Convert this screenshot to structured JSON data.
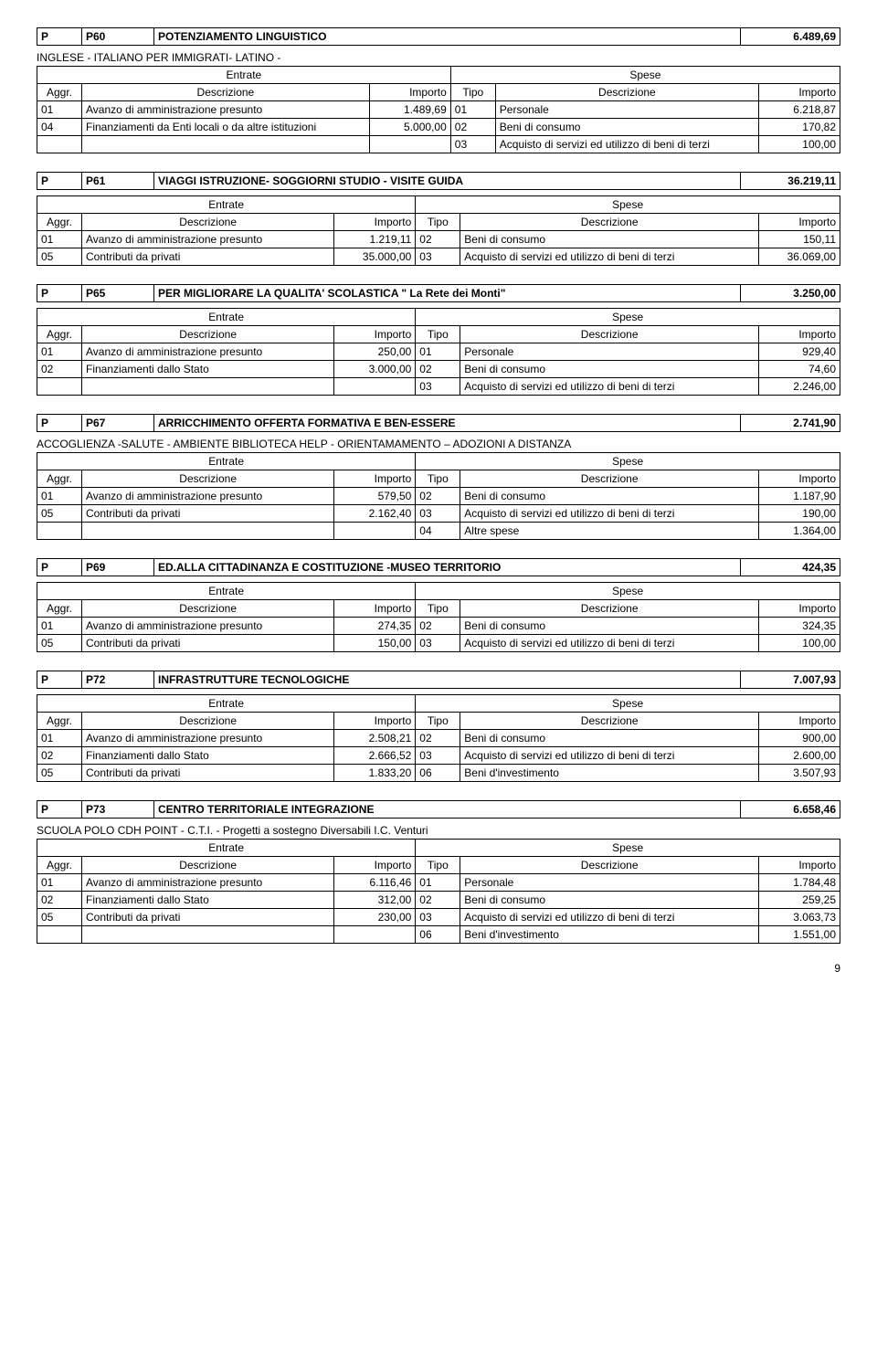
{
  "labels": {
    "entrate": "Entrate",
    "spese": "Spese",
    "aggr": "Aggr.",
    "descrizione": "Descrizione",
    "importo": "Importo",
    "tipo": "Tipo"
  },
  "page_number": "9",
  "sections": [
    {
      "code": "P",
      "ref": "P60",
      "title": "POTENZIAMENTO LINGUISTICO",
      "amount": "6.489,69",
      "subtitle": "INGLESE - ITALIANO PER IMMIGRATI- LATINO -",
      "rows": [
        {
          "a": "01",
          "ad": "Avanzo di amministrazione presunto",
          "ai": "1.489,69",
          "t": "01",
          "td": "Personale",
          "ti": "6.218,87"
        },
        {
          "a": "04",
          "ad": "Finanziamenti da Enti locali o da altre istituzioni",
          "ai": "5.000,00",
          "t": "02",
          "td": "Beni di consumo",
          "ti": "170,82"
        },
        {
          "a": "",
          "ad": "",
          "ai": "",
          "t": "03",
          "td": "Acquisto di servizi ed utilizzo di beni di terzi",
          "ti": "100,00"
        }
      ]
    },
    {
      "code": "P",
      "ref": "P61",
      "title": "VIAGGI ISTRUZIONE- SOGGIORNI STUDIO - VISITE GUIDA",
      "amount": "36.219,11",
      "rows": [
        {
          "a": "01",
          "ad": "Avanzo di amministrazione presunto",
          "ai": "1.219,11",
          "t": "02",
          "td": "Beni di consumo",
          "ti": "150,11"
        },
        {
          "a": "05",
          "ad": "Contributi da privati",
          "ai": "35.000,00",
          "t": "03",
          "td": "Acquisto di servizi ed utilizzo di beni di terzi",
          "ti": "36.069,00"
        }
      ]
    },
    {
      "code": "P",
      "ref": "P65",
      "title": "PER MIGLIORARE LA QUALITA' SCOLASTICA \" La Rete dei Monti\"",
      "amount": "3.250,00",
      "rows": [
        {
          "a": "01",
          "ad": "Avanzo di amministrazione presunto",
          "ai": "250,00",
          "t": "01",
          "td": "Personale",
          "ti": "929,40"
        },
        {
          "a": "02",
          "ad": "Finanziamenti dallo Stato",
          "ai": "3.000,00",
          "t": "02",
          "td": "Beni di consumo",
          "ti": "74,60"
        },
        {
          "a": "",
          "ad": "",
          "ai": "",
          "t": "03",
          "td": "Acquisto di servizi ed utilizzo di beni di terzi",
          "ti": "2.246,00"
        }
      ]
    },
    {
      "code": "P",
      "ref": "P67",
      "title": "ARRICCHIMENTO OFFERTA FORMATIVA E BEN-ESSERE",
      "amount": "2.741,90",
      "subtitle": "ACCOGLIENZA -SALUTE - AMBIENTE BIBLIOTECA HELP -  ORIENTAMAMENTO – ADOZIONI A DISTANZA",
      "rows": [
        {
          "a": "01",
          "ad": "Avanzo di amministrazione presunto",
          "ai": "579,50",
          "t": "02",
          "td": "Beni di consumo",
          "ti": "1.187,90"
        },
        {
          "a": "05",
          "ad": "Contributi da privati",
          "ai": "2.162,40",
          "t": "03",
          "td": "Acquisto di servizi ed utilizzo di beni di terzi",
          "ti": "190,00"
        },
        {
          "a": "",
          "ad": "",
          "ai": "",
          "t": "04",
          "td": "Altre spese",
          "ti": "1.364,00"
        }
      ]
    },
    {
      "code": "P",
      "ref": "P69",
      "title": "ED.ALLA CITTADINANZA E COSTITUZIONE -MUSEO TERRITORIO",
      "amount": "424,35",
      "rows": [
        {
          "a": "01",
          "ad": "Avanzo di amministrazione presunto",
          "ai": "274,35",
          "t": "02",
          "td": "Beni di consumo",
          "ti": "324,35"
        },
        {
          "a": "05",
          "ad": "Contributi da privati",
          "ai": "150,00",
          "t": "03",
          "td": "Acquisto di servizi ed utilizzo di beni di terzi",
          "ti": "100,00"
        }
      ]
    },
    {
      "code": "P",
      "ref": "P72",
      "title": "INFRASTRUTTURE TECNOLOGICHE",
      "amount": "7.007,93",
      "rows": [
        {
          "a": "01",
          "ad": "Avanzo di amministrazione presunto",
          "ai": "2.508,21",
          "t": "02",
          "td": "Beni di consumo",
          "ti": "900,00"
        },
        {
          "a": "02",
          "ad": "Finanziamenti dallo Stato",
          "ai": "2.666,52",
          "t": "03",
          "td": "Acquisto di servizi ed utilizzo di beni di terzi",
          "ti": "2.600,00"
        },
        {
          "a": "05",
          "ad": "Contributi da privati",
          "ai": "1.833,20",
          "t": "06",
          "td": "Beni d'investimento",
          "ti": "3.507,93"
        }
      ]
    },
    {
      "code": "P",
      "ref": "P73",
      "title": "CENTRO TERRITORIALE INTEGRAZIONE",
      "amount": "6.658,46",
      "subtitle": "SCUOLA POLO CDH POINT - C.T.I. -  Progetti a sostegno Diversabili I.C.  Venturi",
      "rows": [
        {
          "a": "01",
          "ad": "Avanzo di amministrazione presunto",
          "ai": "6.116,46",
          "t": "01",
          "td": "Personale",
          "ti": "1.784,48"
        },
        {
          "a": "02",
          "ad": "Finanziamenti dallo Stato",
          "ai": "312,00",
          "t": "02",
          "td": "Beni di consumo",
          "ti": "259,25"
        },
        {
          "a": "05",
          "ad": "Contributi da privati",
          "ai": "230,00",
          "t": "03",
          "td": "Acquisto di servizi ed utilizzo di beni di terzi",
          "ti": "3.063,73"
        },
        {
          "a": "",
          "ad": "",
          "ai": "",
          "t": "06",
          "td": "Beni d'investimento",
          "ti": "1.551,00"
        }
      ]
    }
  ]
}
